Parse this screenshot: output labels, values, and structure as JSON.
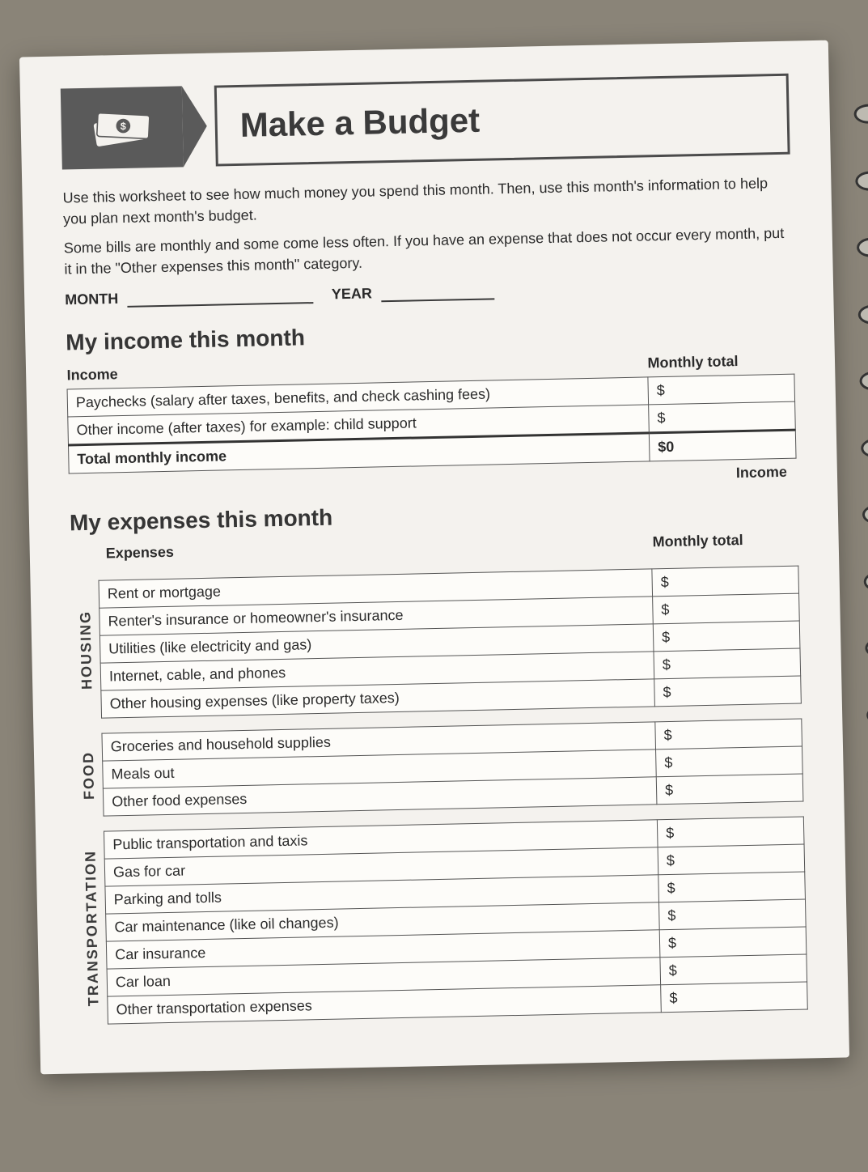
{
  "title": "Make a Budget",
  "intro": {
    "para1": "Use this worksheet to see how much money you spend this month. Then, use this month's information to help you plan next month's budget.",
    "para2": "Some bills are monthly and some come less often. If you have an expense that does not occur every month, put it in the \"Other expenses this month\" category."
  },
  "date": {
    "month_label": "MONTH",
    "year_label": "YEAR"
  },
  "income_section": {
    "heading": "My income this month",
    "col_label": "Income",
    "col_total": "Monthly total",
    "rows": [
      {
        "label": "Paychecks (salary after taxes, benefits, and check cashing fees)",
        "amount": "$"
      },
      {
        "label": "Other income (after taxes) for example: child support",
        "amount": "$"
      }
    ],
    "total_label": "Total monthly income",
    "total_amount": "$0",
    "footer_label": "Income"
  },
  "expenses_section": {
    "heading": "My expenses this month",
    "col_label": "Expenses",
    "col_total": "Monthly total",
    "groups": [
      {
        "category": "HOUSING",
        "rows": [
          {
            "label": "Rent or mortgage",
            "amount": "$"
          },
          {
            "label": "Renter's insurance or homeowner's insurance",
            "amount": "$"
          },
          {
            "label": "Utilities (like electricity and gas)",
            "amount": "$"
          },
          {
            "label": "Internet, cable, and phones",
            "amount": "$"
          },
          {
            "label": "Other housing expenses (like property taxes)",
            "amount": "$"
          }
        ]
      },
      {
        "category": "FOOD",
        "rows": [
          {
            "label": "Groceries and household supplies",
            "amount": "$"
          },
          {
            "label": "Meals out",
            "amount": "$"
          },
          {
            "label": "Other food expenses",
            "amount": "$"
          }
        ]
      },
      {
        "category": "TRANSPORTATION",
        "rows": [
          {
            "label": "Public transportation and taxis",
            "amount": "$"
          },
          {
            "label": "Gas for car",
            "amount": "$"
          },
          {
            "label": "Parking and tolls",
            "amount": "$"
          },
          {
            "label": "Car maintenance (like oil changes)",
            "amount": "$"
          },
          {
            "label": "Car insurance",
            "amount": "$"
          },
          {
            "label": "Car loan",
            "amount": "$"
          },
          {
            "label": "Other transportation expenses",
            "amount": "$"
          }
        ]
      }
    ]
  },
  "colors": {
    "page_bg": "#f4f2ee",
    "header_box": "#5a5a5a",
    "border": "#4b4b4b",
    "text": "#2b2b2b"
  }
}
